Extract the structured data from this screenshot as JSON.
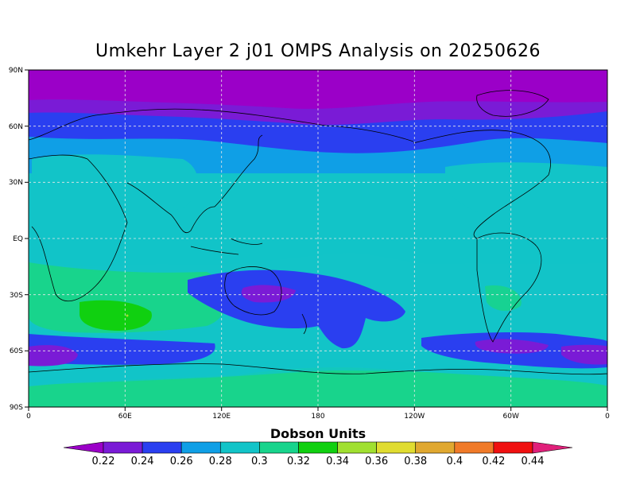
{
  "title": "Umkehr Layer 2 j01 OMPS Analysis on 20250626",
  "colorbar": {
    "title": "Dobson Units",
    "labels": [
      "0.22",
      "0.24",
      "0.26",
      "0.28",
      "0.3",
      "0.32",
      "0.34",
      "0.36",
      "0.38",
      "0.4",
      "0.42",
      "0.44"
    ],
    "colors": [
      "#9b00c8",
      "#7a1bd6",
      "#2a3ff0",
      "#0f9fe6",
      "#12c4c8",
      "#18d48c",
      "#10d010",
      "#a0e030",
      "#e0dc30",
      "#e0a830",
      "#f07a28",
      "#f01010",
      "#e0207a"
    ]
  },
  "axes": {
    "lat_labels": [
      "90N",
      "60N",
      "30N",
      "EQ",
      "30S",
      "60S",
      "90S"
    ],
    "lon_labels": [
      "0",
      "60E",
      "120E",
      "180",
      "120W",
      "60W",
      "0"
    ]
  },
  "chart_data": {
    "type": "heatmap",
    "title": "Umkehr Layer 2 j01 OMPS Analysis on 20250626",
    "units": "Dobson Units",
    "levels": [
      0.22,
      0.24,
      0.26,
      0.28,
      0.3,
      0.32,
      0.34,
      0.36,
      0.38,
      0.4,
      0.42,
      0.44
    ],
    "xlim": [
      "0",
      "0"
    ],
    "ylim": [
      "90S",
      "90N"
    ],
    "grid": true
  }
}
